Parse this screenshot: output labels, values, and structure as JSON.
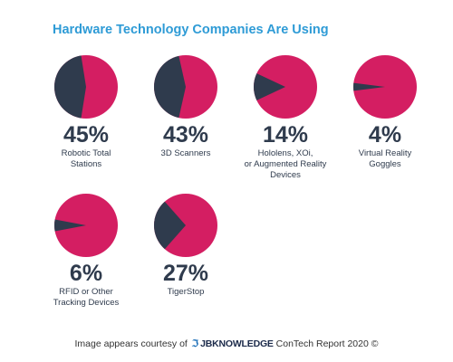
{
  "colors": {
    "accent": "#d41e62",
    "dark": "#2f3b4d",
    "title": "#2e9bd6"
  },
  "chart_data": {
    "type": "pie",
    "title": "Hardware Technology Companies Are Using",
    "items": [
      {
        "value": 45,
        "display": "45%",
        "label": "Robotic Total\nStations"
      },
      {
        "value": 43,
        "display": "43%",
        "label": "3D Scanners"
      },
      {
        "value": 14,
        "display": "14%",
        "label": "Hololens, XOi,\nor Augmented Reality\nDevices"
      },
      {
        "value": 4,
        "display": "4%",
        "label": "Virtual Reality\nGoggles"
      },
      {
        "value": 6,
        "display": "6%",
        "label": "RFID or Other\nTracking Devices"
      },
      {
        "value": 27,
        "display": "27%",
        "label": "TigerStop"
      }
    ]
  },
  "footer": {
    "prefix": "Image appears courtesy of",
    "logo_mark": "ℑ",
    "logo_text": "JBKNOWLEDGE",
    "suffix": "ConTech Report 2020 ©"
  }
}
